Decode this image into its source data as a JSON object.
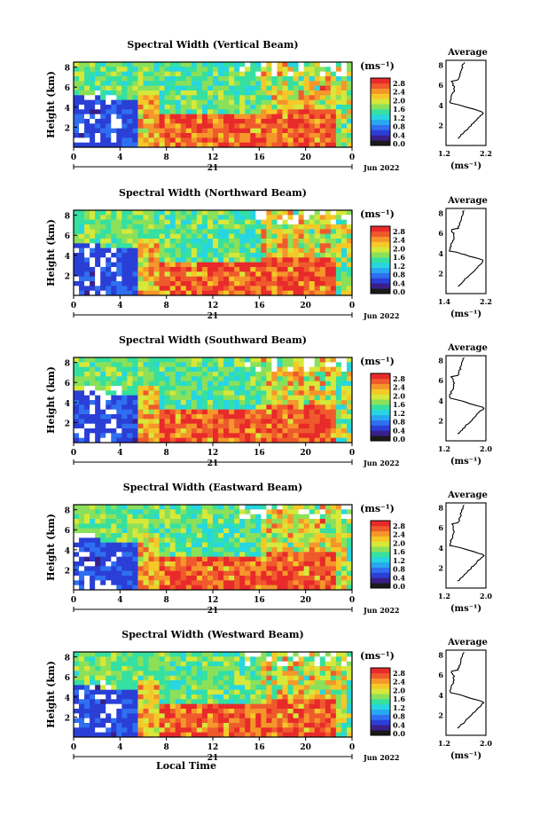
{
  "chart_data": [
    {
      "type": "heatmap",
      "title": "Spectral Width (Vertical Beam)",
      "ylabel": "Height (km)",
      "yticks": [
        "2",
        "4",
        "6",
        "8"
      ],
      "xticks": [
        "0",
        "4",
        "8",
        "12",
        "16",
        "20",
        "0"
      ],
      "date_tick": "21",
      "date_label": "Jun 2022",
      "colorbar_unit": "(ms⁻¹)",
      "colorbar_ticks": [
        "2.8",
        "2.4",
        "2.0",
        "1.6",
        "1.2",
        "0.8",
        "0.4",
        "0.0"
      ],
      "profile": {
        "title": "Average",
        "xticks": [
          "1.2",
          "2.2"
        ],
        "xlabel": "(ms⁻¹)",
        "yticks": [
          "2",
          "4",
          "6",
          "8"
        ]
      }
    },
    {
      "type": "heatmap",
      "title": "Spectral Width (Northward Beam)",
      "ylabel": "Height (km)",
      "yticks": [
        "2",
        "4",
        "6",
        "8"
      ],
      "xticks": [
        "0",
        "4",
        "8",
        "12",
        "16",
        "20",
        "0"
      ],
      "date_tick": "21",
      "date_label": "Jun 2022",
      "colorbar_unit": "(ms⁻¹)",
      "colorbar_ticks": [
        "2.8",
        "2.4",
        "2.0",
        "1.6",
        "1.2",
        "0.8",
        "0.4",
        "0.0"
      ],
      "profile": {
        "title": "Average",
        "xticks": [
          "1.4",
          "2.2"
        ],
        "xlabel": "(ms⁻¹)",
        "yticks": [
          "2",
          "4",
          "6",
          "8"
        ]
      }
    },
    {
      "type": "heatmap",
      "title": "Spectral Width (Southward Beam)",
      "ylabel": "Height (km)",
      "yticks": [
        "2",
        "4",
        "6",
        "8"
      ],
      "xticks": [
        "0",
        "4",
        "8",
        "12",
        "16",
        "20",
        "0"
      ],
      "date_tick": "21",
      "date_label": "Jun 2022",
      "colorbar_unit": "(ms⁻¹)",
      "colorbar_ticks": [
        "2.8",
        "2.4",
        "2.0",
        "1.6",
        "1.2",
        "0.8",
        "0.4",
        "0.0"
      ],
      "profile": {
        "title": "Average",
        "xticks": [
          "1.2",
          "2.0"
        ],
        "xlabel": "(ms⁻¹)",
        "yticks": [
          "2",
          "4",
          "6",
          "8"
        ]
      }
    },
    {
      "type": "heatmap",
      "title": "Spectral Width (Eastward Beam)",
      "ylabel": "Height (km)",
      "yticks": [
        "2",
        "4",
        "6",
        "8"
      ],
      "xticks": [
        "0",
        "4",
        "8",
        "12",
        "16",
        "20",
        "0"
      ],
      "date_tick": "21",
      "date_label": "Jun 2022",
      "colorbar_unit": "(ms⁻¹)",
      "colorbar_ticks": [
        "2.8",
        "2.4",
        "2.0",
        "1.6",
        "1.2",
        "0.8",
        "0.4",
        "0.0"
      ],
      "profile": {
        "title": "Average",
        "xticks": [
          "1.2",
          "2.0"
        ],
        "xlabel": "(ms⁻¹)",
        "yticks": [
          "2",
          "4",
          "6",
          "8"
        ]
      }
    },
    {
      "type": "heatmap",
      "title": "Spectral Width (Westward Beam)",
      "ylabel": "Height (km)",
      "yticks": [
        "2",
        "4",
        "6",
        "8"
      ],
      "xticks": [
        "0",
        "4",
        "8",
        "12",
        "16",
        "20",
        "0"
      ],
      "date_tick": "21",
      "date_label": "Jun 2022",
      "xlabel": "Local Time",
      "colorbar_unit": "(ms⁻¹)",
      "colorbar_ticks": [
        "2.8",
        "2.4",
        "2.0",
        "1.6",
        "1.2",
        "0.8",
        "0.4",
        "0.0"
      ],
      "profile": {
        "title": "Average",
        "xticks": [
          "1.2",
          "2.0"
        ],
        "xlabel": "(ms⁻¹)",
        "yticks": [
          "2",
          "4",
          "6",
          "8"
        ]
      }
    }
  ],
  "colormap": [
    "#1a1a1a",
    "#3a1f8a",
    "#2a3fd6",
    "#2f6ff0",
    "#28a8f0",
    "#27d6e0",
    "#35e0a0",
    "#8be05a",
    "#d6e83a",
    "#f5c828",
    "#f5962a",
    "#ef5a2c",
    "#e82a2a"
  ]
}
